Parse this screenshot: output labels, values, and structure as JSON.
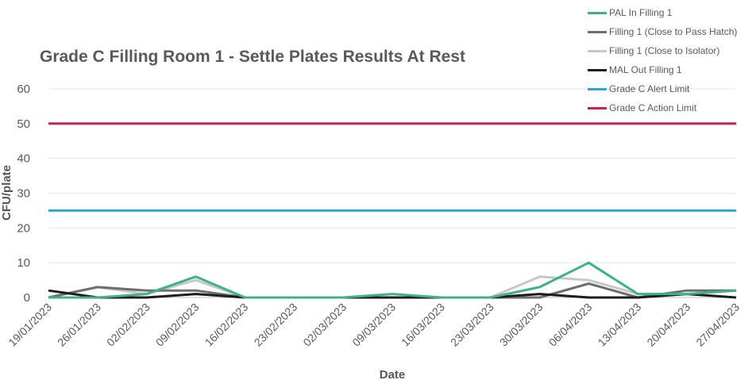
{
  "chart_data": {
    "type": "line",
    "title": "Grade C Filling Room 1 - Settle Plates Results At Rest",
    "xlabel": "Date",
    "ylabel": "CFU/plate",
    "ylim": [
      0,
      60
    ],
    "yticks": [
      0,
      10,
      20,
      30,
      40,
      50,
      60
    ],
    "grid": true,
    "legend_position": "top-right",
    "categories": [
      "19/01/2023",
      "26/01/2023",
      "02/02/2023",
      "09/02/2023",
      "16/02/2023",
      "23/02/2023",
      "02/03/2023",
      "09/03/2023",
      "16/03/2023",
      "23/03/2023",
      "30/03/2023",
      "06/04/2023",
      "13/04/2023",
      "20/04/2023",
      "27/04/2023"
    ],
    "series": [
      {
        "name": "PAL In Filling 1",
        "color": "#3db383",
        "values": [
          0,
          0,
          1,
          6,
          0,
          0,
          0,
          1,
          0,
          0,
          3,
          10,
          1,
          1,
          2
        ]
      },
      {
        "name": "Filling 1 (Close to Pass Hatch)",
        "color": "#6e6e6e",
        "values": [
          0,
          3,
          2,
          2,
          0,
          0,
          0,
          0,
          0,
          0,
          0,
          4,
          0,
          2,
          2
        ]
      },
      {
        "name": "Filling 1 (Close to Isolator)",
        "color": "#c8c8c8",
        "values": [
          0,
          3,
          1,
          5,
          0,
          0,
          0,
          0,
          0,
          0,
          6,
          5,
          1,
          1,
          2
        ]
      },
      {
        "name": "MAL Out Filling 1",
        "color": "#1c1c1c",
        "values": [
          2,
          0,
          0,
          1,
          0,
          0,
          0,
          0,
          0,
          0,
          1,
          0,
          0,
          1,
          0
        ]
      },
      {
        "name": "Grade C Alert Limit",
        "color": "#29a8d8",
        "values": [
          25,
          25,
          25,
          25,
          25,
          25,
          25,
          25,
          25,
          25,
          25,
          25,
          25,
          25,
          25
        ]
      },
      {
        "name": "Grade C Action Limit",
        "color": "#c4244a",
        "values": [
          50,
          50,
          50,
          50,
          50,
          50,
          50,
          50,
          50,
          50,
          50,
          50,
          50,
          50,
          50
        ]
      }
    ]
  }
}
